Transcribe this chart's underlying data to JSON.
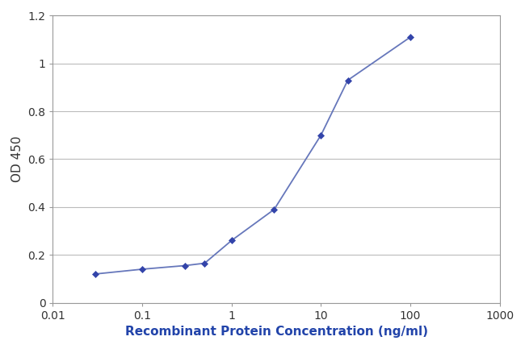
{
  "x": [
    0.03,
    0.1,
    0.3,
    0.5,
    1.0,
    3.0,
    10.0,
    20.0,
    100.0
  ],
  "y": [
    0.12,
    0.14,
    0.155,
    0.165,
    0.26,
    0.39,
    0.7,
    0.93,
    1.11
  ],
  "line_color": "#6677bb",
  "marker_color": "#3344aa",
  "marker_size": 4,
  "line_width": 1.3,
  "xlabel": "Recombinant Protein Concentration (ng/ml)",
  "ylabel": "OD 450",
  "xlim": [
    0.01,
    1000
  ],
  "ylim": [
    0,
    1.2
  ],
  "yticks": [
    0,
    0.2,
    0.4,
    0.6,
    0.8,
    1.0,
    1.2
  ],
  "ytick_labels": [
    "0",
    "0.2",
    "0.4",
    "0.6",
    "0.8",
    "1",
    "1.2"
  ],
  "background_color": "#ffffff",
  "plot_bg_color": "#ffffff",
  "xlabel_fontsize": 11,
  "ylabel_fontsize": 11,
  "xlabel_color": "#2244aa",
  "ylabel_color": "#333333",
  "tick_fontsize": 10,
  "tick_color": "#333333",
  "grid_color": "#bbbbbb",
  "spine_color": "#999999"
}
